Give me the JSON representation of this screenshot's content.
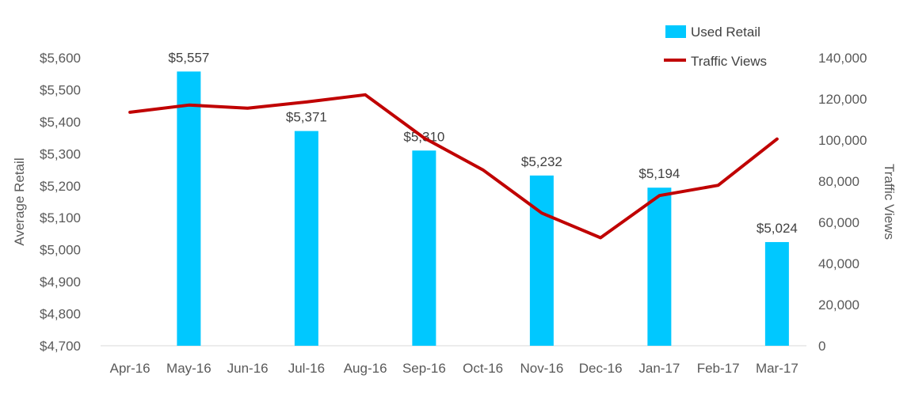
{
  "chart_data": {
    "type": "bar",
    "categories": [
      "Apr-16",
      "May-16",
      "Jun-16",
      "Jul-16",
      "Aug-16",
      "Sep-16",
      "Oct-16",
      "Nov-16",
      "Dec-16",
      "Jan-17",
      "Feb-17",
      "Mar-17"
    ],
    "series": [
      {
        "name": "Used Retail",
        "type": "bar",
        "axis": "left",
        "color": "#00C8FF",
        "values": [
          null,
          5557,
          null,
          5371,
          null,
          5310,
          null,
          5232,
          null,
          5194,
          null,
          5024
        ],
        "labels": [
          "",
          "$5,557",
          "",
          "$5,371",
          "",
          "$5,310",
          "",
          "$5,232",
          "",
          "$5,194",
          "",
          "$5,024"
        ]
      },
      {
        "name": "Traffic Views",
        "type": "line",
        "axis": "right",
        "color": "#C00000",
        "values": [
          113500,
          117000,
          115500,
          118500,
          122000,
          101000,
          85500,
          64500,
          52500,
          73000,
          78000,
          100500
        ]
      }
    ],
    "ylabel": "Average Retail",
    "y2label": "Traffic Views",
    "ylim": [
      4700,
      5600
    ],
    "y2lim": [
      0,
      140000
    ],
    "yticks": [
      "$4,700",
      "$4,800",
      "$4,900",
      "$5,000",
      "$5,100",
      "$5,200",
      "$5,300",
      "$5,400",
      "$5,500",
      "$5,600"
    ],
    "y2ticks": [
      "0",
      "20,000",
      "40,000",
      "60,000",
      "80,000",
      "100,000",
      "120,000",
      "140,000"
    ],
    "grid": false,
    "legend": "top-right"
  }
}
